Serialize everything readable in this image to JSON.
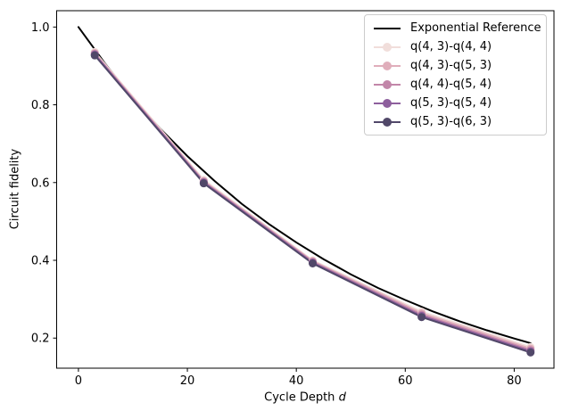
{
  "chart_data": {
    "type": "line",
    "title": "",
    "xlabel": "Cycle Depth d",
    "xlabel_main": "Cycle Depth",
    "xlabel_var": "d",
    "ylabel": "Circuit fidelity",
    "grid": false,
    "legend_position": "upper right",
    "x_ticks": [
      0,
      20,
      40,
      60,
      80
    ],
    "x_tick_labels": [
      "0",
      "20",
      "40",
      "60",
      "80"
    ],
    "y_ticks": [
      0.2,
      0.4,
      0.6,
      0.8,
      1.0
    ],
    "y_tick_labels": [
      "0.2",
      "0.4",
      "0.6",
      "0.8",
      "1.0"
    ],
    "x_range": [
      -4.0,
      87.3
    ],
    "y_range": [
      0.1226,
      1.042
    ],
    "reference": {
      "name": "Exponential Reference",
      "color": "#000000",
      "x": [
        0,
        5,
        10,
        15,
        20,
        25,
        30,
        35,
        40,
        45,
        50,
        55,
        60,
        65,
        70,
        75,
        80,
        83
      ],
      "y": [
        1.0,
        0.904,
        0.817,
        0.739,
        0.668,
        0.604,
        0.545,
        0.493,
        0.446,
        0.403,
        0.364,
        0.329,
        0.298,
        0.269,
        0.243,
        0.22,
        0.199,
        0.187
      ]
    },
    "x": [
      3,
      23,
      43,
      63,
      83
    ],
    "series": [
      {
        "name": "q(4, 3)-q(4, 4)",
        "color": "#f1dedb",
        "values": [
          0.936,
          0.607,
          0.4,
          0.268,
          0.177
        ]
      },
      {
        "name": "q(4, 3)-q(5, 3)",
        "color": "#e0aebb",
        "values": [
          0.933,
          0.604,
          0.398,
          0.264,
          0.173
        ]
      },
      {
        "name": "q(4, 4)-q(5, 4)",
        "color": "#c286a9",
        "values": [
          0.931,
          0.602,
          0.396,
          0.26,
          0.169
        ]
      },
      {
        "name": "q(5, 3)-q(5, 4)",
        "color": "#8d5f9d",
        "values": [
          0.929,
          0.6,
          0.394,
          0.257,
          0.166
        ]
      },
      {
        "name": "q(5, 3)-q(6, 3)",
        "color": "#514869",
        "values": [
          0.927,
          0.598,
          0.392,
          0.254,
          0.163
        ]
      }
    ]
  }
}
